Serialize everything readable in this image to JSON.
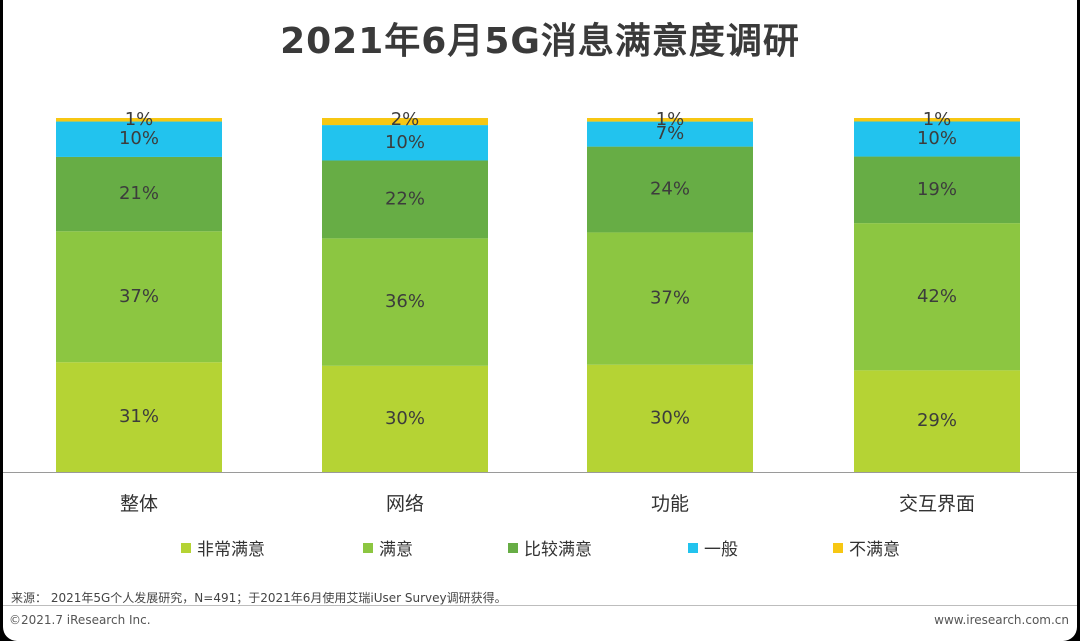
{
  "title": "2021年6月5G消息满意度调研",
  "chart_data": {
    "type": "bar",
    "stacked": true,
    "percent_stacked": true,
    "categories": [
      "整体",
      "网络",
      "功能",
      "交互界面"
    ],
    "series": [
      {
        "name": "非常满意",
        "color": "#b5d334",
        "values": [
          31,
          30,
          30,
          29
        ]
      },
      {
        "name": "满意",
        "color": "#8cc641",
        "values": [
          37,
          36,
          37,
          42
        ]
      },
      {
        "name": "比较满意",
        "color": "#67ad45",
        "values": [
          21,
          22,
          24,
          19
        ]
      },
      {
        "name": "一般",
        "color": "#22c3ee",
        "values": [
          10,
          10,
          7,
          10
        ]
      },
      {
        "name": "不满意",
        "color": "#f7c713",
        "values": [
          1,
          2,
          1,
          1
        ]
      }
    ],
    "value_suffix": "%",
    "ylim": [
      0,
      100
    ],
    "legend_position": "bottom",
    "grid": false
  },
  "footer": {
    "source": "来源： 2021年5G个人发展研究，N=491；于2021年6月使用艾瑞iUser Survey调研获得。",
    "copyright": "©2021.7 iResearch Inc.",
    "website": "www.iresearch.com.cn"
  }
}
